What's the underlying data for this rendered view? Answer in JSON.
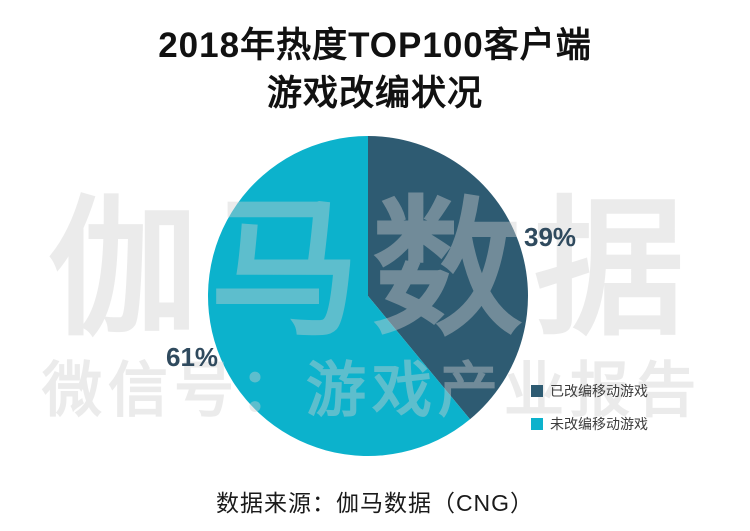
{
  "title": {
    "line1": "2018年热度TOP100客户端",
    "line2": "游戏改编状况"
  },
  "watermark": {
    "line1": "伽马数据",
    "line2": "微信号：游戏产业报告"
  },
  "source_text": "数据来源：伽马数据（CNG）",
  "colors": {
    "adapted_slice": "#2E5B72",
    "not_adapted_slice": "#0CB2CC",
    "percent_label_text": "#2F4A5E",
    "watermark_gray": "#E9E9E9"
  },
  "chart_data": {
    "type": "pie",
    "title": "2018年热度TOP100客户端游戏改编状况",
    "start_angle_deg": 0,
    "direction": "clockwise",
    "legend_position": "right",
    "slices": [
      {
        "label": "已改编移动游戏",
        "value": 39,
        "display": "39%",
        "color": "#2E5B72"
      },
      {
        "label": "未改编移动游戏",
        "value": 61,
        "display": "61%",
        "color": "#0CB2CC"
      }
    ]
  }
}
